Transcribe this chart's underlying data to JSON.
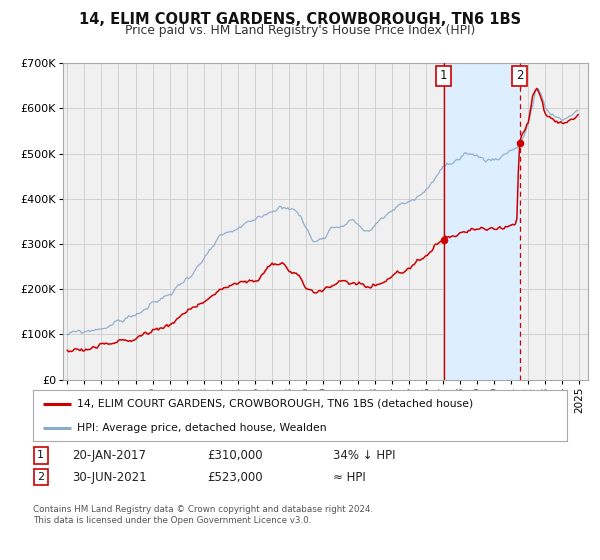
{
  "title1": "14, ELIM COURT GARDENS, CROWBOROUGH, TN6 1BS",
  "title2": "Price paid vs. HM Land Registry's House Price Index (HPI)",
  "legend_label_red": "14, ELIM COURT GARDENS, CROWBOROUGH, TN6 1BS (detached house)",
  "legend_label_blue": "HPI: Average price, detached house, Wealden",
  "annotation1_date": "20-JAN-2017",
  "annotation1_price": "£310,000",
  "annotation1_hpi": "34% ↓ HPI",
  "annotation2_date": "30-JUN-2021",
  "annotation2_price": "£523,000",
  "annotation2_hpi": "≈ HPI",
  "vline1_x": 2017.054,
  "vline2_x": 2021.496,
  "sale1_y": 310000,
  "sale2_y": 523000,
  "ylim": [
    0,
    700000
  ],
  "xlim_start": 1994.75,
  "xlim_end": 2025.5,
  "red_color": "#cc0000",
  "blue_color": "#88aacc",
  "shade_color": "#ddeeff",
  "bg_color": "#f0f0f0",
  "grid_color": "#cccccc",
  "footnote1": "Contains HM Land Registry data © Crown copyright and database right 2024.",
  "footnote2": "This data is licensed under the Open Government Licence v3.0."
}
